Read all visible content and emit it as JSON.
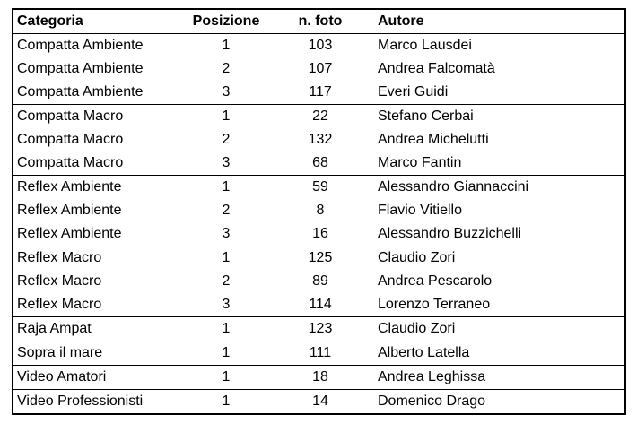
{
  "colors": {
    "border": "#000000",
    "text": "#000000",
    "background": "#ffffff"
  },
  "table": {
    "headers": [
      "Categoria",
      "Posizione",
      "n. foto",
      "Autore"
    ],
    "groups": [
      {
        "category": "Compatta Ambiente",
        "rows": [
          [
            "Compatta Ambiente",
            "1",
            "103",
            "Marco Lausdei"
          ],
          [
            "Compatta Ambiente",
            "2",
            "107",
            "Andrea Falcomatà"
          ],
          [
            "Compatta Ambiente",
            "3",
            "117",
            "Everi Guidi"
          ]
        ]
      },
      {
        "category": "Compatta Macro",
        "rows": [
          [
            "Compatta Macro",
            "1",
            "22",
            "Stefano Cerbai"
          ],
          [
            "Compatta Macro",
            "2",
            "132",
            "Andrea Michelutti"
          ],
          [
            "Compatta Macro",
            "3",
            "68",
            "Marco Fantin"
          ]
        ]
      },
      {
        "category": "Reflex Ambiente",
        "rows": [
          [
            "Reflex Ambiente",
            "1",
            "59",
            "Alessandro Giannaccini"
          ],
          [
            "Reflex Ambiente",
            "2",
            "8",
            "Flavio Vitiello"
          ],
          [
            "Reflex Ambiente",
            "3",
            "16",
            "Alessandro Buzzichelli"
          ]
        ]
      },
      {
        "category": "Reflex Macro",
        "rows": [
          [
            "Reflex Macro",
            "1",
            "125",
            "Claudio Zori"
          ],
          [
            "Reflex Macro",
            "2",
            "89",
            "Andrea Pescarolo"
          ],
          [
            "Reflex Macro",
            "3",
            "114",
            "Lorenzo Terraneo"
          ]
        ]
      },
      {
        "category": "Raja Ampat",
        "rows": [
          [
            "Raja Ampat",
            "1",
            "123",
            "Claudio Zori"
          ]
        ]
      },
      {
        "category": "Sopra il mare",
        "rows": [
          [
            "Sopra il mare",
            "1",
            "111",
            "Alberto Latella"
          ]
        ]
      },
      {
        "category": "Video Amatori",
        "rows": [
          [
            "Video Amatori",
            "1",
            "18",
            "Andrea Leghissa"
          ]
        ]
      },
      {
        "category": "Video Professionisti",
        "rows": [
          [
            "Video Professionisti",
            "1",
            "14",
            "Domenico Drago"
          ]
        ]
      }
    ]
  }
}
